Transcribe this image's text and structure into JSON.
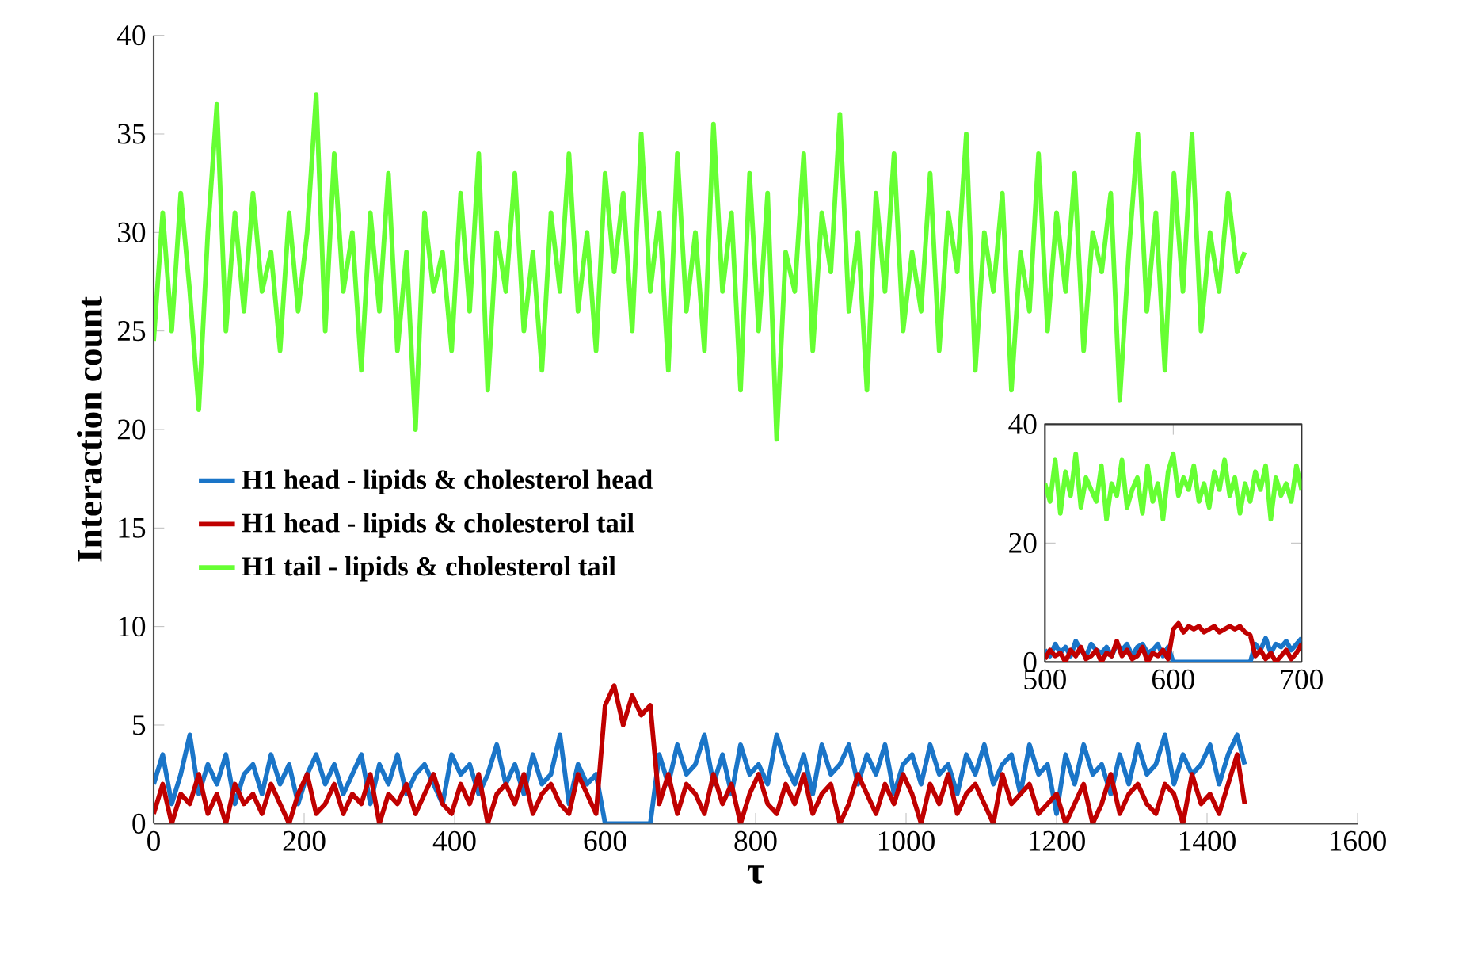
{
  "chart_data": [
    {
      "type": "line",
      "xlabel": "τ",
      "ylabel": "Interaction count",
      "xlim": [
        0,
        1600
      ],
      "ylim": [
        0,
        40
      ],
      "xticks": [
        0,
        200,
        400,
        600,
        800,
        1000,
        1200,
        1400,
        1600
      ],
      "yticks": [
        0,
        5,
        10,
        15,
        20,
        25,
        30,
        35,
        40
      ],
      "legend": "left",
      "x": [
        0,
        12,
        24,
        36,
        48,
        60,
        72,
        84,
        96,
        108,
        120,
        132,
        144,
        156,
        168,
        180,
        192,
        204,
        216,
        228,
        240,
        252,
        264,
        276,
        288,
        300,
        312,
        324,
        336,
        348,
        360,
        372,
        384,
        396,
        408,
        420,
        432,
        444,
        456,
        468,
        480,
        492,
        504,
        516,
        528,
        540,
        552,
        564,
        576,
        588,
        600,
        612,
        624,
        636,
        648,
        660,
        672,
        684,
        696,
        708,
        720,
        732,
        744,
        756,
        768,
        780,
        792,
        804,
        816,
        828,
        840,
        852,
        864,
        876,
        888,
        900,
        912,
        924,
        936,
        948,
        960,
        972,
        984,
        996,
        1008,
        1020,
        1032,
        1044,
        1056,
        1068,
        1080,
        1092,
        1104,
        1116,
        1128,
        1140,
        1152,
        1164,
        1176,
        1188,
        1200,
        1212,
        1224,
        1236,
        1248,
        1260,
        1272,
        1284,
        1296,
        1308,
        1320,
        1332,
        1344,
        1356,
        1368,
        1380,
        1392,
        1404,
        1416,
        1428,
        1440,
        1450
      ],
      "series": [
        {
          "name": "H1 head - lipids & cholesterol head",
          "color": "#1a75c8",
          "values": [
            2,
            3.5,
            1,
            2.5,
            4.5,
            1.5,
            3,
            2,
            3.5,
            1,
            2.5,
            3,
            1.5,
            3.5,
            2,
            3,
            1,
            2.5,
            3.5,
            2,
            3,
            1.5,
            2.5,
            3.5,
            1,
            3,
            2,
            3.5,
            1.5,
            2.5,
            3,
            2,
            1,
            3.5,
            2.5,
            3,
            1.5,
            2.5,
            4,
            2,
            3,
            1.5,
            3.5,
            2,
            2.5,
            4.5,
            1,
            3,
            2,
            2.5,
            0,
            0,
            0,
            0,
            0,
            0,
            3.5,
            2,
            4,
            2.5,
            3,
            4.5,
            2,
            3.5,
            1.5,
            4,
            2.5,
            3,
            2,
            4.5,
            3,
            2,
            3.5,
            1.5,
            4,
            2.5,
            3,
            4,
            2,
            3.5,
            2.5,
            4,
            1.5,
            3,
            3.5,
            2,
            4,
            2.5,
            3,
            1.5,
            3.5,
            2.5,
            4,
            2,
            3,
            3.5,
            1.5,
            4,
            2.5,
            3,
            0.5,
            3.5,
            2,
            4,
            2.5,
            3,
            1.5,
            3.5,
            2,
            4,
            2.5,
            3,
            4.5,
            2,
            3.5,
            2.5,
            3,
            4,
            2,
            3.5,
            4.5,
            3
          ]
        },
        {
          "name": "H1 head - lipids & cholesterol tail",
          "color": "#c00000",
          "values": [
            0.5,
            2,
            0,
            1.5,
            1,
            2.5,
            0.5,
            1.5,
            0,
            2,
            1,
            1.5,
            0.5,
            2,
            1,
            0,
            1.5,
            2.5,
            0.5,
            1,
            2,
            0.5,
            1.5,
            1,
            2.5,
            0,
            1.5,
            1,
            2,
            0.5,
            1.5,
            2.5,
            1,
            0.5,
            2,
            1,
            2.5,
            0,
            1.5,
            2,
            1,
            2.5,
            0.5,
            1.5,
            2,
            1,
            0.5,
            2.5,
            1.5,
            0.5,
            6,
            7,
            5,
            6.5,
            5.5,
            6,
            1,
            2.5,
            0.5,
            2,
            1.5,
            0.5,
            2.5,
            1,
            2,
            0,
            1.5,
            2.5,
            1,
            0.5,
            2,
            1,
            2.5,
            0.5,
            1.5,
            2,
            0,
            1,
            2.5,
            1.5,
            0.5,
            2,
            1,
            2.5,
            1.5,
            0,
            2,
            1,
            2.5,
            0.5,
            1.5,
            2,
            1,
            0,
            2.5,
            1,
            1.5,
            2,
            0.5,
            1,
            1.5,
            0,
            1,
            2,
            0,
            1,
            2.5,
            0.5,
            1.5,
            2,
            1,
            0.5,
            2,
            1.5,
            0,
            2.5,
            1,
            1.5,
            0.5,
            2,
            3.5,
            1
          ]
        },
        {
          "name": "H1 tail - lipids & cholesterol tail",
          "color": "#66ff33",
          "values": [
            24.5,
            31,
            25,
            32,
            27,
            21,
            30,
            36.5,
            25,
            31,
            26,
            32,
            27,
            29,
            24,
            31,
            26,
            30,
            37,
            25,
            34,
            27,
            30,
            23,
            31,
            26,
            33,
            24,
            29,
            20,
            31,
            27,
            29,
            24,
            32,
            26,
            34,
            22,
            30,
            27,
            33,
            25,
            29,
            23,
            31,
            27,
            34,
            26,
            30,
            24,
            33,
            28,
            32,
            25,
            35,
            27,
            31,
            23,
            34,
            26,
            30,
            24,
            35.5,
            27,
            31,
            22,
            33,
            25,
            32,
            19.5,
            29,
            27,
            34,
            24,
            31,
            28,
            36,
            26,
            30,
            22,
            32,
            27,
            34,
            25,
            29,
            26,
            33,
            24,
            31,
            28,
            35,
            23,
            30,
            27,
            32,
            22,
            29,
            26,
            34,
            25,
            31,
            27,
            33,
            24,
            30,
            28,
            32,
            21.5,
            29,
            35,
            26,
            31,
            23,
            33,
            27,
            35,
            25,
            30,
            27,
            32,
            28,
            29
          ]
        }
      ]
    },
    {
      "type": "line",
      "xlim": [
        500,
        700
      ],
      "ylim": [
        0,
        40
      ],
      "xticks": [
        500,
        600,
        700
      ],
      "yticks": [
        0,
        20,
        40
      ],
      "x": [
        500,
        504,
        508,
        512,
        516,
        520,
        524,
        528,
        532,
        536,
        540,
        544,
        548,
        552,
        556,
        560,
        564,
        568,
        572,
        576,
        580,
        584,
        588,
        592,
        596,
        600,
        604,
        608,
        612,
        616,
        620,
        624,
        628,
        632,
        636,
        640,
        644,
        648,
        652,
        656,
        660,
        664,
        668,
        672,
        676,
        680,
        684,
        688,
        692,
        696,
        700
      ],
      "series": [
        {
          "color": "#1a75c8",
          "values": [
            2,
            1,
            3,
            1.5,
            2.5,
            1,
            3.5,
            2,
            1,
            3,
            2,
            1.5,
            2.5,
            1,
            3,
            2,
            3,
            1,
            2.5,
            3,
            1.5,
            2,
            3,
            1,
            2.5,
            0,
            0,
            0,
            0,
            0,
            0,
            0,
            0,
            0,
            0,
            0,
            0,
            0,
            0,
            0,
            0,
            3,
            2,
            4,
            1.5,
            3,
            2.5,
            3.5,
            2,
            3,
            4
          ]
        },
        {
          "color": "#c00000",
          "values": [
            0.5,
            2,
            1,
            1.5,
            0,
            2,
            1,
            2.5,
            0.5,
            1,
            2,
            0,
            1.5,
            1,
            3.5,
            1,
            2,
            0.5,
            1,
            2.5,
            0,
            1.5,
            1,
            2,
            0.5,
            5.5,
            6.5,
            5,
            6,
            5.5,
            6,
            5,
            5.5,
            6,
            5,
            5.5,
            6,
            5.5,
            6,
            5,
            4.5,
            1,
            2,
            0.5,
            1.5,
            0,
            1,
            2,
            0.5,
            1.5,
            3
          ]
        },
        {
          "color": "#66ff33",
          "values": [
            30,
            27,
            34,
            25,
            32,
            28,
            35,
            26,
            31,
            29,
            27,
            33,
            24,
            30,
            28,
            34,
            26,
            29,
            31,
            25,
            33,
            27,
            30,
            24,
            32,
            35,
            28,
            31,
            29,
            33,
            27,
            30,
            26,
            32,
            29,
            34,
            28,
            31,
            25,
            30,
            27,
            32,
            29,
            33,
            24,
            31,
            28,
            30,
            27,
            33,
            29
          ]
        }
      ]
    }
  ]
}
